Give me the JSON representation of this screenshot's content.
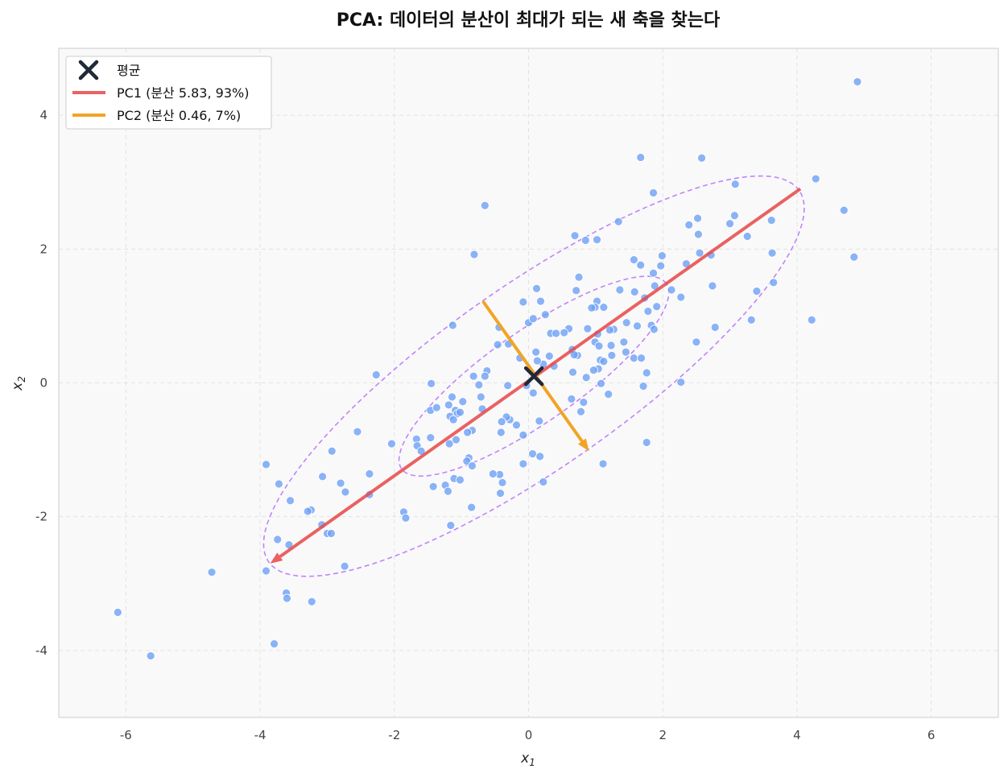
{
  "chart_data": {
    "type": "scatter",
    "title": "PCA: 데이터의 분산이 최대가 되는 새 축을 찾는다",
    "xlabel": "x",
    "xlabel_sub": "1",
    "ylabel": "x",
    "ylabel_sub": "2",
    "xlim": [
      -7,
      7
    ],
    "ylim": [
      -5,
      5
    ],
    "xticks": [
      -6,
      -4,
      -2,
      0,
      2,
      4,
      6
    ],
    "yticks": [
      -4,
      -2,
      0,
      2,
      4
    ],
    "grid": true,
    "legend_position": "upper-left",
    "colors": {
      "points": "#6ea0f5",
      "pc1": "#e84646",
      "pc2": "#f2a326",
      "mean": "#1f2937",
      "ellipse": "#c084fc",
      "plot_bg": "#f9f9f9"
    },
    "legend": [
      {
        "label": "평균",
        "marker": "x",
        "color": "#1f2937"
      },
      {
        "label": "PC1 (분산 5.83, 93%)",
        "marker": "line",
        "color": "#e84646"
      },
      {
        "label": "PC2 (분산 0.46, 7%)",
        "marker": "line",
        "color": "#f2a326"
      }
    ],
    "mean": [
      0.08,
      0.1
    ],
    "pc1_line": {
      "from": [
        4.05,
        2.9
      ],
      "to": [
        -3.85,
        -2.7
      ],
      "arrow_at": [
        -3.85,
        -2.7
      ]
    },
    "pc2_line": {
      "from": [
        -0.68,
        1.22
      ],
      "to": [
        0.9,
        -1.02
      ],
      "arrow_at": [
        0.9,
        -1.02
      ]
    },
    "ellipses": [
      {
        "center": [
          0.08,
          0.1
        ],
        "semi_major": 2.41,
        "semi_minor": 0.68,
        "angle_deg": 35.1
      },
      {
        "center": [
          0.08,
          0.1
        ],
        "semi_major": 4.83,
        "semi_minor": 1.36,
        "angle_deg": 35.1
      }
    ],
    "points": [
      [
        4.9,
        4.5
      ],
      [
        4.28,
        3.05
      ],
      [
        3.08,
        2.97
      ],
      [
        2.58,
        3.36
      ],
      [
        1.67,
        3.37
      ],
      [
        1.86,
        2.84
      ],
      [
        4.7,
        2.58
      ],
      [
        4.85,
        1.88
      ],
      [
        4.22,
        0.94
      ],
      [
        3.65,
        1.5
      ],
      [
        3.4,
        1.37
      ],
      [
        3.32,
        0.94
      ],
      [
        3.62,
        2.43
      ],
      [
        3.63,
        1.94
      ],
      [
        3.26,
        2.19
      ],
      [
        3.07,
        2.5
      ],
      [
        3.0,
        2.38
      ],
      [
        2.52,
        2.46
      ],
      [
        2.53,
        2.22
      ],
      [
        2.39,
        2.36
      ],
      [
        2.27,
        1.28
      ],
      [
        2.35,
        1.78
      ],
      [
        2.72,
        1.91
      ],
      [
        2.55,
        1.94
      ],
      [
        2.74,
        1.45
      ],
      [
        2.78,
        0.83
      ],
      [
        2.5,
        0.61
      ],
      [
        2.27,
        0.01
      ],
      [
        1.99,
        1.9
      ],
      [
        1.97,
        1.75
      ],
      [
        1.86,
        1.64
      ],
      [
        1.88,
        1.45
      ],
      [
        1.91,
        1.14
      ],
      [
        1.78,
        1.07
      ],
      [
        1.83,
        0.86
      ],
      [
        1.87,
        0.8
      ],
      [
        1.73,
        1.27
      ],
      [
        1.67,
        1.76
      ],
      [
        1.57,
        1.84
      ],
      [
        1.58,
        1.36
      ],
      [
        1.62,
        0.85
      ],
      [
        1.57,
        0.37
      ],
      [
        1.68,
        0.37
      ],
      [
        1.76,
        0.15
      ],
      [
        1.71,
        -0.05
      ],
      [
        1.76,
        -0.89
      ],
      [
        2.13,
        1.39
      ],
      [
        1.46,
        0.9
      ],
      [
        1.45,
        0.46
      ],
      [
        1.42,
        0.61
      ],
      [
        1.36,
        1.39
      ],
      [
        1.34,
        2.41
      ],
      [
        1.27,
        0.8
      ],
      [
        1.23,
        0.56
      ],
      [
        1.24,
        0.41
      ],
      [
        1.21,
        0.79
      ],
      [
        1.12,
        1.13
      ],
      [
        1.02,
        1.22
      ],
      [
        0.99,
        1.13
      ],
      [
        0.94,
        1.12
      ],
      [
        1.03,
        0.73
      ],
      [
        0.99,
        0.61
      ],
      [
        1.05,
        0.55
      ],
      [
        1.07,
        0.34
      ],
      [
        1.12,
        0.32
      ],
      [
        1.04,
        0.21
      ],
      [
        0.97,
        0.19
      ],
      [
        1.08,
        -0.01
      ],
      [
        1.19,
        -0.17
      ],
      [
        1.11,
        -1.21
      ],
      [
        0.85,
        2.13
      ],
      [
        0.69,
        2.2
      ],
      [
        1.02,
        2.14
      ],
      [
        0.75,
        1.58
      ],
      [
        0.71,
        1.38
      ],
      [
        0.88,
        0.81
      ],
      [
        0.6,
        0.81
      ],
      [
        0.53,
        0.75
      ],
      [
        0.65,
        0.5
      ],
      [
        0.73,
        0.41
      ],
      [
        0.68,
        0.42
      ],
      [
        0.66,
        0.16
      ],
      [
        0.86,
        0.08
      ],
      [
        0.82,
        -0.29
      ],
      [
        0.78,
        -0.43
      ],
      [
        0.64,
        -0.24
      ],
      [
        0.33,
        0.74
      ],
      [
        0.41,
        0.74
      ],
      [
        0.25,
        1.02
      ],
      [
        0.18,
        1.22
      ],
      [
        0.12,
        1.41
      ],
      [
        -0.08,
        1.21
      ],
      [
        0.0,
        0.9
      ],
      [
        0.07,
        0.96
      ],
      [
        0.11,
        0.46
      ],
      [
        0.31,
        0.4
      ],
      [
        0.38,
        0.25
      ],
      [
        0.22,
        0.28
      ],
      [
        0.13,
        0.33
      ],
      [
        0.07,
        -0.15
      ],
      [
        0.16,
        -0.57
      ],
      [
        -0.03,
        -0.04
      ],
      [
        -0.13,
        0.37
      ],
      [
        -0.3,
        0.58
      ],
      [
        -0.46,
        0.57
      ],
      [
        -0.44,
        0.83
      ],
      [
        -0.62,
        0.18
      ],
      [
        -0.65,
        0.1
      ],
      [
        -0.82,
        0.1
      ],
      [
        -0.74,
        -0.03
      ],
      [
        -0.71,
        -0.21
      ],
      [
        -0.69,
        -0.39
      ],
      [
        -0.31,
        -0.04
      ],
      [
        -0.28,
        -0.55
      ],
      [
        -0.33,
        -0.51
      ],
      [
        -0.4,
        -0.58
      ],
      [
        -0.18,
        -0.63
      ],
      [
        -0.08,
        -0.78
      ],
      [
        -0.41,
        -0.74
      ],
      [
        0.06,
        -1.06
      ],
      [
        0.17,
        -1.1
      ],
      [
        -0.08,
        -1.21
      ],
      [
        -0.43,
        -1.37
      ],
      [
        -0.53,
        -1.36
      ],
      [
        -0.39,
        -1.49
      ],
      [
        -0.42,
        -1.65
      ],
      [
        0.22,
        -1.48
      ],
      [
        -0.84,
        -0.71
      ],
      [
        -0.91,
        -0.74
      ],
      [
        -0.89,
        -1.12
      ],
      [
        -0.92,
        -1.17
      ],
      [
        -0.84,
        -1.24
      ],
      [
        -0.85,
        -1.86
      ],
      [
        -0.81,
        1.92
      ],
      [
        -0.65,
        2.65
      ],
      [
        -1.13,
        0.86
      ],
      [
        -0.98,
        -0.28
      ],
      [
        -1.09,
        -0.41
      ],
      [
        -1.06,
        -0.46
      ],
      [
        -1.02,
        -0.44
      ],
      [
        -1.14,
        -0.21
      ],
      [
        -1.19,
        -0.33
      ],
      [
        -1.17,
        -0.5
      ],
      [
        -1.12,
        -0.55
      ],
      [
        -1.08,
        -0.85
      ],
      [
        -1.18,
        -0.91
      ],
      [
        -1.11,
        -1.43
      ],
      [
        -1.02,
        -1.45
      ],
      [
        -1.24,
        -1.53
      ],
      [
        -1.2,
        -1.62
      ],
      [
        -1.16,
        -2.13
      ],
      [
        -1.45,
        -0.01
      ],
      [
        -1.46,
        -0.41
      ],
      [
        -1.37,
        -0.37
      ],
      [
        -1.46,
        -0.82
      ],
      [
        -1.67,
        -0.84
      ],
      [
        -1.66,
        -0.94
      ],
      [
        -1.6,
        -1.02
      ],
      [
        -1.42,
        -1.55
      ],
      [
        -1.86,
        -1.93
      ],
      [
        -1.83,
        -2.02
      ],
      [
        -2.04,
        -0.91
      ],
      [
        -2.27,
        0.12
      ],
      [
        -2.55,
        -0.73
      ],
      [
        -2.37,
        -1.36
      ],
      [
        -2.37,
        -1.67
      ],
      [
        -2.73,
        -1.63
      ],
      [
        -2.8,
        -1.5
      ],
      [
        -2.93,
        -1.02
      ],
      [
        -3.07,
        -1.4
      ],
      [
        -3.08,
        -2.12
      ],
      [
        -3.0,
        -2.25
      ],
      [
        -2.94,
        -2.25
      ],
      [
        -3.24,
        -1.9
      ],
      [
        -3.29,
        -1.92
      ],
      [
        -3.23,
        -3.27
      ],
      [
        -2.74,
        -2.74
      ],
      [
        -3.55,
        -1.76
      ],
      [
        -3.72,
        -1.51
      ],
      [
        -3.91,
        -1.22
      ],
      [
        -3.74,
        -2.34
      ],
      [
        -3.57,
        -2.42
      ],
      [
        -3.61,
        -3.14
      ],
      [
        -3.6,
        -3.22
      ],
      [
        -3.91,
        -2.81
      ],
      [
        -3.79,
        -3.9
      ],
      [
        -4.72,
        -2.83
      ],
      [
        -6.12,
        -3.43
      ],
      [
        -5.63,
        -4.08
      ]
    ]
  }
}
